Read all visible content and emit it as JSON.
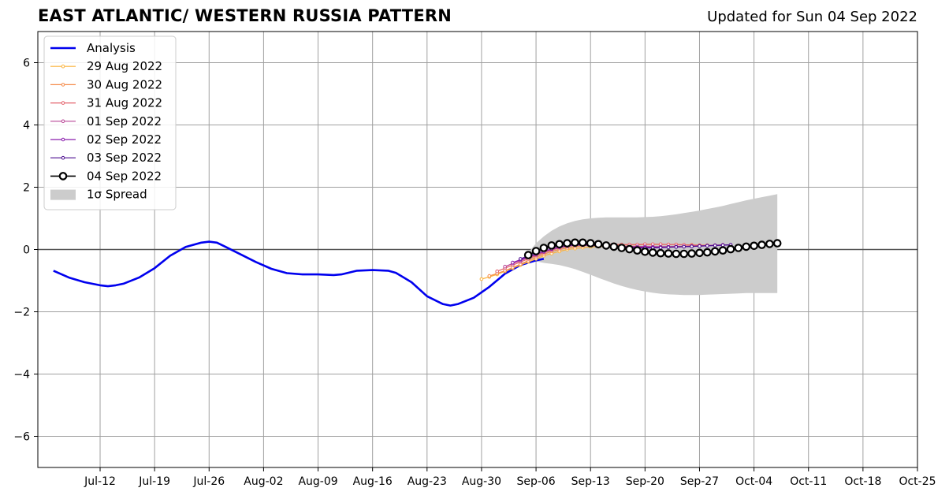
{
  "chart_data": {
    "type": "line",
    "title": "EAST ATLANTIC/ WESTERN RUSSIA PATTERN",
    "subtitle": "Updated for Sun 04 Sep 2022",
    "xlabel": "",
    "ylabel": "",
    "xlim": [
      "2022-07-04",
      "2022-10-25"
    ],
    "ylim": [
      -7,
      7
    ],
    "grid": true,
    "legend_position": "top-left",
    "x_ticks": [
      {
        "date": "2022-07-12",
        "label": "Jul-12"
      },
      {
        "date": "2022-07-19",
        "label": "Jul-19"
      },
      {
        "date": "2022-07-26",
        "label": "Jul-26"
      },
      {
        "date": "2022-08-02",
        "label": "Aug-02"
      },
      {
        "date": "2022-08-09",
        "label": "Aug-09"
      },
      {
        "date": "2022-08-16",
        "label": "Aug-16"
      },
      {
        "date": "2022-08-23",
        "label": "Aug-23"
      },
      {
        "date": "2022-08-30",
        "label": "Aug-30"
      },
      {
        "date": "2022-09-06",
        "label": "Sep-06"
      },
      {
        "date": "2022-09-13",
        "label": "Sep-13"
      },
      {
        "date": "2022-09-20",
        "label": "Sep-20"
      },
      {
        "date": "2022-09-27",
        "label": "Sep-27"
      },
      {
        "date": "2022-10-04",
        "label": "Oct-04"
      },
      {
        "date": "2022-10-11",
        "label": "Oct-11"
      },
      {
        "date": "2022-10-18",
        "label": "Oct-18"
      },
      {
        "date": "2022-10-25",
        "label": "Oct-25"
      }
    ],
    "y_ticks": [
      {
        "value": -6,
        "label": "−6"
      },
      {
        "value": -4,
        "label": "−4"
      },
      {
        "value": -2,
        "label": "−2"
      },
      {
        "value": 0,
        "label": "0"
      },
      {
        "value": 2,
        "label": "2"
      },
      {
        "value": 4,
        "label": "4"
      },
      {
        "value": 6,
        "label": "6"
      }
    ],
    "zero_line": true,
    "analysis": {
      "name": "Analysis",
      "color": "#0000ee",
      "points": [
        [
          "2022-07-06",
          -0.68
        ],
        [
          "2022-07-08",
          -0.9
        ],
        [
          "2022-07-10",
          -1.05
        ],
        [
          "2022-07-12",
          -1.15
        ],
        [
          "2022-07-13",
          -1.18
        ],
        [
          "2022-07-14",
          -1.15
        ],
        [
          "2022-07-15",
          -1.1
        ],
        [
          "2022-07-17",
          -0.9
        ],
        [
          "2022-07-19",
          -0.6
        ],
        [
          "2022-07-21",
          -0.2
        ],
        [
          "2022-07-23",
          0.08
        ],
        [
          "2022-07-25",
          0.22
        ],
        [
          "2022-07-26",
          0.25
        ],
        [
          "2022-07-27",
          0.22
        ],
        [
          "2022-07-28",
          0.1
        ],
        [
          "2022-07-30",
          -0.15
        ],
        [
          "2022-08-01",
          -0.4
        ],
        [
          "2022-08-03",
          -0.62
        ],
        [
          "2022-08-05",
          -0.76
        ],
        [
          "2022-08-07",
          -0.8
        ],
        [
          "2022-08-09",
          -0.8
        ],
        [
          "2022-08-11",
          -0.82
        ],
        [
          "2022-08-12",
          -0.8
        ],
        [
          "2022-08-14",
          -0.68
        ],
        [
          "2022-08-16",
          -0.66
        ],
        [
          "2022-08-18",
          -0.68
        ],
        [
          "2022-08-19",
          -0.75
        ],
        [
          "2022-08-21",
          -1.05
        ],
        [
          "2022-08-23",
          -1.5
        ],
        [
          "2022-08-25",
          -1.75
        ],
        [
          "2022-08-26",
          -1.8
        ],
        [
          "2022-08-27",
          -1.75
        ],
        [
          "2022-08-29",
          -1.55
        ],
        [
          "2022-08-31",
          -1.2
        ],
        [
          "2022-09-02",
          -0.78
        ],
        [
          "2022-09-04",
          -0.5
        ],
        [
          "2022-09-06",
          -0.35
        ],
        [
          "2022-09-07",
          -0.3
        ]
      ]
    },
    "forecasts": [
      {
        "name": "29 Aug 2022",
        "color": "#fbb33b",
        "start": "2022-08-30",
        "values": [
          -0.95,
          -0.88,
          -0.8,
          -0.7,
          -0.6,
          -0.5,
          -0.4,
          -0.3,
          -0.2,
          -0.13,
          -0.06,
          0.0,
          0.03,
          0.06,
          0.08,
          0.09,
          0.1,
          0.1
        ]
      },
      {
        "name": "30 Aug 2022",
        "color": "#f58b4a",
        "start": "2022-08-31",
        "values": [
          -0.85,
          -0.77,
          -0.68,
          -0.58,
          -0.47,
          -0.36,
          -0.25,
          -0.15,
          -0.06,
          0.0,
          0.05,
          0.09,
          0.12,
          0.13,
          0.13,
          0.14,
          0.14,
          0.15,
          0.15,
          0.15,
          0.16,
          0.16,
          0.16,
          0.16,
          0.16,
          0.15,
          0.15,
          0.14,
          0.14
        ]
      },
      {
        "name": "31 Aug 2022",
        "color": "#e3616a",
        "start": "2022-09-01",
        "values": [
          -0.7,
          -0.6,
          -0.5,
          -0.4,
          -0.3,
          -0.2,
          -0.1,
          -0.02,
          0.05,
          0.1,
          0.14,
          0.16,
          0.17,
          0.17,
          0.17,
          0.17,
          0.16,
          0.16,
          0.16,
          0.17,
          0.17,
          0.17,
          0.16,
          0.16,
          0.15,
          0.14,
          0.13,
          0.12
        ]
      },
      {
        "name": "01 Sep 2022",
        "color": "#b94597",
        "start": "2022-09-02",
        "values": [
          -0.55,
          -0.45,
          -0.36,
          -0.26,
          -0.17,
          -0.08,
          0.0,
          0.06,
          0.11,
          0.14,
          0.15,
          0.15,
          0.14,
          0.13,
          0.12,
          0.11,
          0.1,
          0.1,
          0.1,
          0.09,
          0.09,
          0.09,
          0.1,
          0.1,
          0.11,
          0.12,
          0.13,
          0.14,
          0.15
        ]
      },
      {
        "name": "02 Sep 2022",
        "color": "#8a1dad",
        "start": "2022-09-03",
        "values": [
          -0.42,
          -0.33,
          -0.24,
          -0.15,
          -0.06,
          0.02,
          0.08,
          0.12,
          0.14,
          0.14,
          0.13,
          0.12,
          0.11,
          0.1,
          0.09,
          0.08,
          0.07,
          0.07,
          0.07,
          0.07,
          0.08,
          0.08,
          0.09,
          0.1,
          0.11,
          0.12,
          0.13,
          0.14,
          0.15
        ]
      },
      {
        "name": "03 Sep 2022",
        "color": "#4b0c8f",
        "start": "2022-09-04",
        "values": [
          -0.3,
          -0.2,
          -0.1,
          0.0,
          0.08,
          0.13,
          0.16,
          0.17,
          0.17,
          0.16,
          0.14,
          0.12,
          0.1,
          0.08,
          0.06,
          0.05,
          0.05,
          0.05,
          0.06,
          0.07,
          0.08,
          0.09,
          0.1,
          0.11,
          0.12,
          0.13,
          0.14,
          0.15
        ]
      },
      {
        "name": "04 Sep 2022",
        "color": "#000000",
        "start": "2022-09-05",
        "values": [
          -0.18,
          -0.05,
          0.05,
          0.13,
          0.17,
          0.2,
          0.22,
          0.22,
          0.2,
          0.17,
          0.13,
          0.09,
          0.05,
          0.01,
          -0.03,
          -0.07,
          -0.1,
          -0.12,
          -0.13,
          -0.14,
          -0.14,
          -0.13,
          -0.11,
          -0.09,
          -0.06,
          -0.03,
          0.01,
          0.05,
          0.09,
          0.12,
          0.15,
          0.18,
          0.2
        ]
      }
    ],
    "spread": {
      "name": "1σ Spread",
      "color": "#cccccc",
      "start": "2022-09-05",
      "upper": [
        -0.1,
        0.2,
        0.42,
        0.6,
        0.74,
        0.84,
        0.92,
        0.97,
        1.0,
        1.02,
        1.03,
        1.03,
        1.03,
        1.03,
        1.03,
        1.04,
        1.05,
        1.07,
        1.1,
        1.13,
        1.17,
        1.21,
        1.25,
        1.3,
        1.35,
        1.4,
        1.46,
        1.52,
        1.58,
        1.63,
        1.68,
        1.73,
        1.78
      ],
      "lower": [
        -0.3,
        -0.38,
        -0.43,
        -0.46,
        -0.5,
        -0.56,
        -0.63,
        -0.72,
        -0.81,
        -0.91,
        -1.0,
        -1.09,
        -1.17,
        -1.24,
        -1.3,
        -1.35,
        -1.39,
        -1.42,
        -1.44,
        -1.45,
        -1.46,
        -1.46,
        -1.46,
        -1.45,
        -1.44,
        -1.43,
        -1.42,
        -1.41,
        -1.4,
        -1.4,
        -1.4,
        -1.4,
        -1.4
      ]
    },
    "legend": {
      "analysis_label": "Analysis",
      "spread_label": "1σ Spread"
    }
  }
}
